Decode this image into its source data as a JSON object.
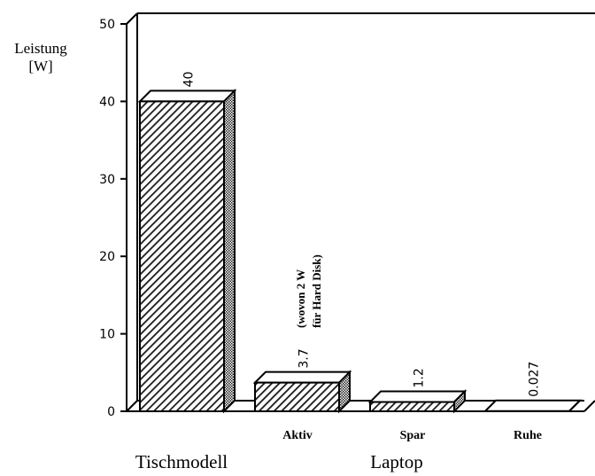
{
  "chart_data": {
    "type": "bar",
    "ylabel_line1": "Leistung",
    "ylabel_line2": "[W]",
    "ylim": [
      0,
      50
    ],
    "yticks": [
      0,
      10,
      20,
      30,
      40,
      50
    ],
    "grid": false,
    "style": "3d-hatched",
    "categories": [
      "",
      "Aktiv",
      "Spar",
      "Ruhe"
    ],
    "values": [
      40,
      3.7,
      1.2,
      0.027
    ],
    "value_labels": [
      "40",
      "3.7",
      "1.2",
      "0.027"
    ],
    "groups": [
      {
        "label": "Tischmodell",
        "categories": [
          ""
        ]
      },
      {
        "label": "Laptop",
        "categories": [
          "Aktiv",
          "Spar",
          "Ruhe"
        ]
      }
    ],
    "annotation_line1": "(wovon 2 W",
    "annotation_line2": "für Hard Disk)"
  }
}
